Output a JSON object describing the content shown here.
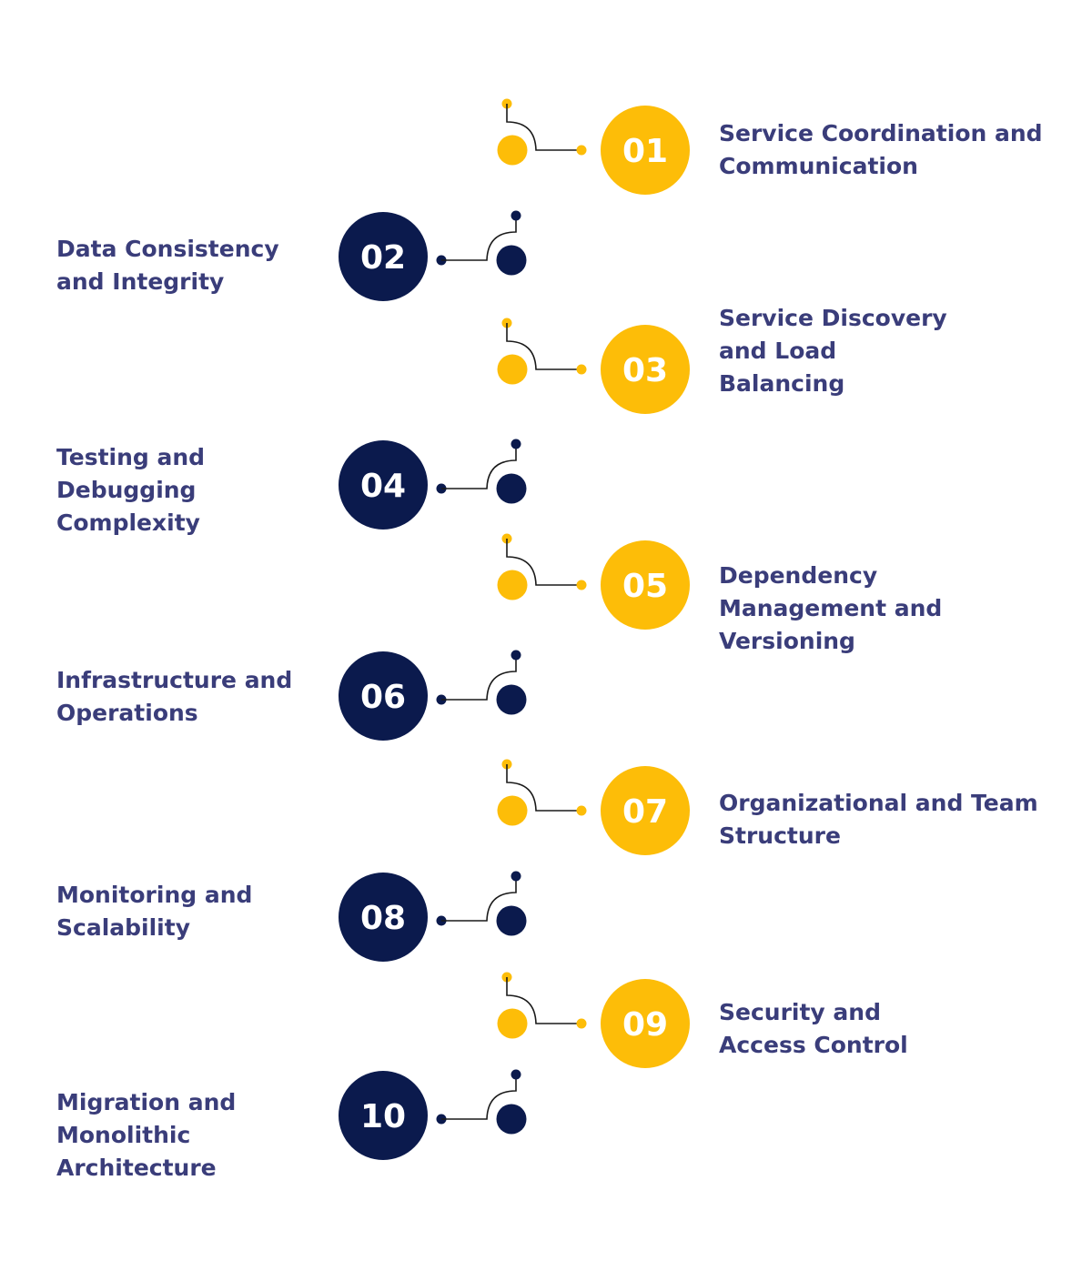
{
  "colors": {
    "yellow": "#FDBD08",
    "navy": "#0B1A4D",
    "text": "#3A3D7A"
  },
  "items": [
    {
      "number": "01",
      "label": "Service Coordination and\nCommunication",
      "side": "right",
      "color": "yellow"
    },
    {
      "number": "02",
      "label": "Data Consistency\nand Integrity",
      "side": "left",
      "color": "navy"
    },
    {
      "number": "03",
      "label": "Service Discovery\nand Load\nBalancing",
      "side": "right",
      "color": "yellow"
    },
    {
      "number": "04",
      "label": "Testing and\nDebugging\nComplexity",
      "side": "left",
      "color": "navy"
    },
    {
      "number": "05",
      "label": "Dependency\nManagement and\nVersioning",
      "side": "right",
      "color": "yellow"
    },
    {
      "number": "06",
      "label": "Infrastructure and\nOperations",
      "side": "left",
      "color": "navy"
    },
    {
      "number": "07",
      "label": "Organizational and Team\n Structure",
      "side": "right",
      "color": "yellow"
    },
    {
      "number": "08",
      "label": "Monitoring and\nScalability",
      "side": "left",
      "color": "navy"
    },
    {
      "number": "09",
      "label": "Security and\nAccess Control",
      "side": "right",
      "color": "yellow"
    },
    {
      "number": "10",
      "label": "Migration and\nMonolithic\nArchitecture",
      "side": "left",
      "color": "navy"
    }
  ]
}
